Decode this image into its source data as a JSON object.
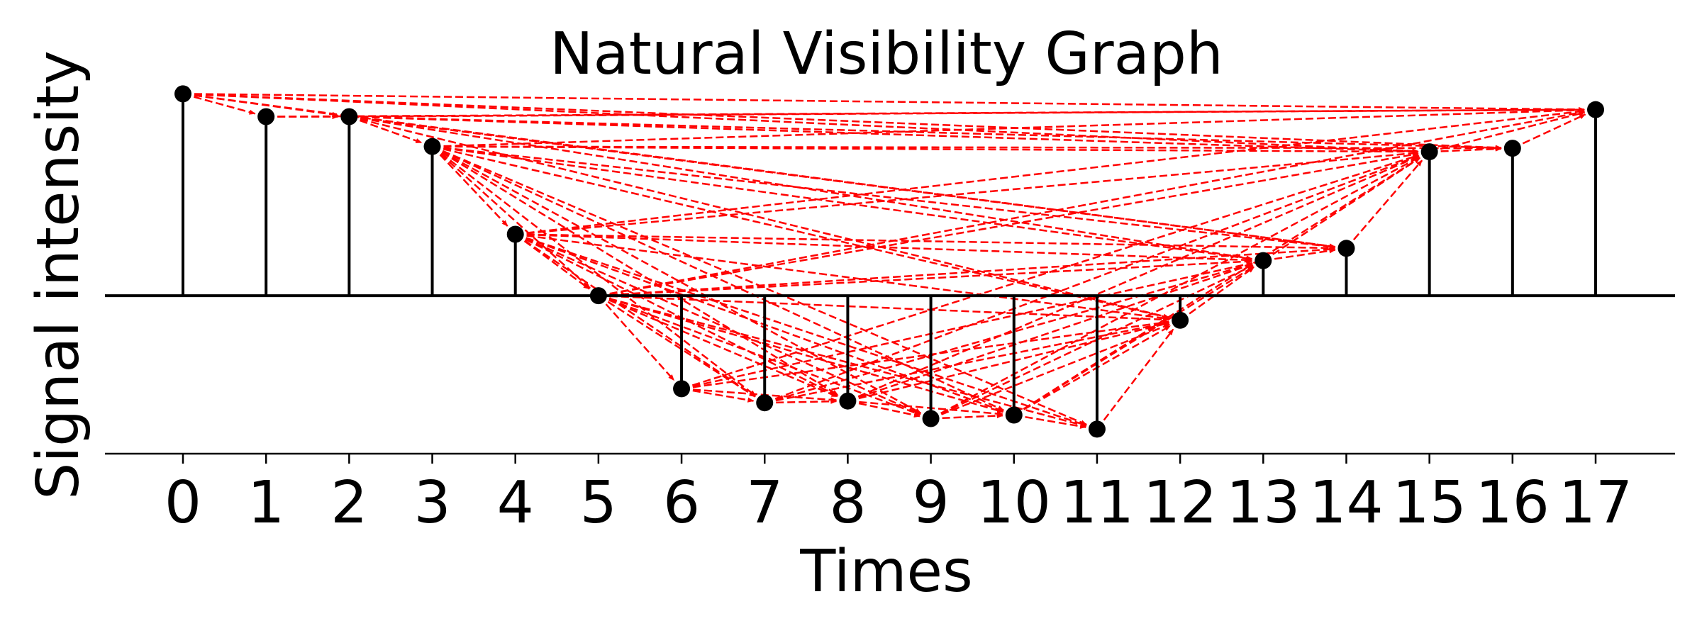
{
  "chart_data": {
    "type": "visibility-graph",
    "title": "Natural Visibility Graph",
    "xlabel": "Times",
    "ylabel": "Signal intensity",
    "x": [
      0,
      1,
      2,
      3,
      4,
      5,
      6,
      7,
      8,
      9,
      10,
      11,
      12,
      13,
      14,
      15,
      16,
      17
    ],
    "tick_labels": [
      "0",
      "1",
      "2",
      "3",
      "4",
      "5",
      "6",
      "7",
      "8",
      "9",
      "10",
      "11",
      "12",
      "13",
      "14",
      "15",
      "16",
      "17"
    ],
    "values": [
      1.15,
      1.02,
      1.02,
      0.85,
      0.35,
      0.0,
      -0.53,
      -0.61,
      -0.6,
      -0.7,
      -0.68,
      -0.76,
      -0.14,
      0.2,
      0.27,
      0.82,
      0.84,
      1.06
    ],
    "ylim": [
      -0.9,
      1.2
    ],
    "baseline": 0,
    "grid": false,
    "legend": "none",
    "colors": {
      "stems": "#000000",
      "markers": "#000000",
      "edges": "#ff0000"
    }
  }
}
